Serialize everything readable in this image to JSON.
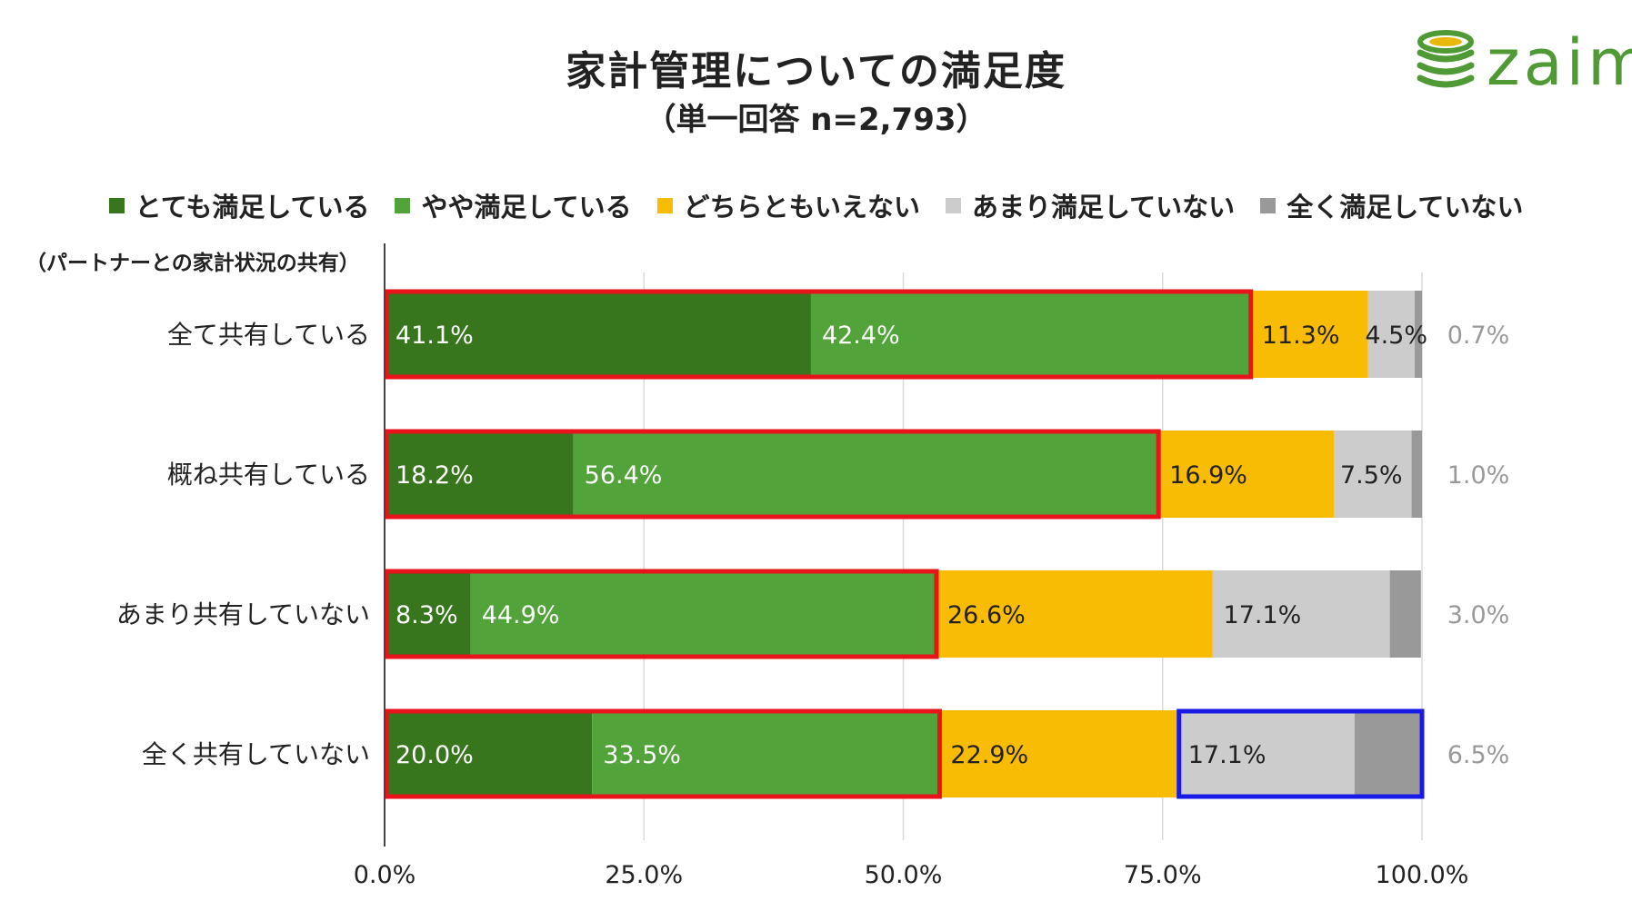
{
  "header": {
    "title": "家計管理についての満足度",
    "subtitle": "（単一回答 n=2,793）",
    "logo_text": "zaim"
  },
  "group_label": "（パートナーとの家計状況の共有）",
  "colors": {
    "very_satisfied": "#38761d",
    "somewhat_satisfied": "#52a33a",
    "neutral": "#f9bc05",
    "not_very_satisfied": "#cccccc",
    "not_at_all_satisfied": "#999999",
    "highlight_red": "#e8131b",
    "highlight_blue": "#1a1ae6",
    "logo_green": "#4f9a35"
  },
  "chart_data": {
    "type": "bar",
    "orientation": "horizontal",
    "stacked": true,
    "title": "家計管理についての満足度",
    "subtitle": "（単一回答 n=2,793）",
    "xlabel": "",
    "ylabel": "（パートナーとの家計状況の共有）",
    "xlim": [
      0,
      100
    ],
    "legend_position": "top",
    "categories": [
      "全て共有している",
      "概ね共有している",
      "あまり共有していない",
      "全く共有していない"
    ],
    "series": [
      {
        "name": "とても満足している",
        "values": [
          41.1,
          18.2,
          8.3,
          20.0
        ]
      },
      {
        "name": "やや満足している",
        "values": [
          42.4,
          56.4,
          44.9,
          33.5
        ]
      },
      {
        "name": "どちらともいえない",
        "values": [
          11.3,
          16.9,
          26.6,
          22.9
        ]
      },
      {
        "name": "あまり満足していない",
        "values": [
          4.5,
          7.5,
          17.1,
          17.1
        ]
      },
      {
        "name": "全く満足していない",
        "values": [
          0.7,
          1.0,
          3.0,
          6.5
        ]
      }
    ],
    "value_labels": [
      [
        "41.1%",
        "42.4%",
        "11.3%",
        "4.5%",
        "0.7%"
      ],
      [
        "18.2%",
        "56.4%",
        "16.9%",
        "7.5%",
        "1.0%"
      ],
      [
        "8.3%",
        "44.9%",
        "26.6%",
        "17.1%",
        "3.0%"
      ],
      [
        "20.0%",
        "33.5%",
        "22.9%",
        "17.1%",
        "6.5%"
      ]
    ],
    "x_ticks": [
      "0.0%",
      "25.0%",
      "50.0%",
      "75.0%",
      "100.0%"
    ],
    "x_tick_values": [
      0,
      25,
      50,
      75,
      100
    ],
    "highlights": [
      {
        "row": 0,
        "from_series": 0,
        "to_series": 1,
        "color": "red"
      },
      {
        "row": 1,
        "from_series": 0,
        "to_series": 1,
        "color": "red"
      },
      {
        "row": 2,
        "from_series": 0,
        "to_series": 1,
        "color": "red"
      },
      {
        "row": 3,
        "from_series": 0,
        "to_series": 1,
        "color": "red"
      },
      {
        "row": 3,
        "from_series": 3,
        "to_series": 4,
        "color": "blue"
      }
    ]
  }
}
